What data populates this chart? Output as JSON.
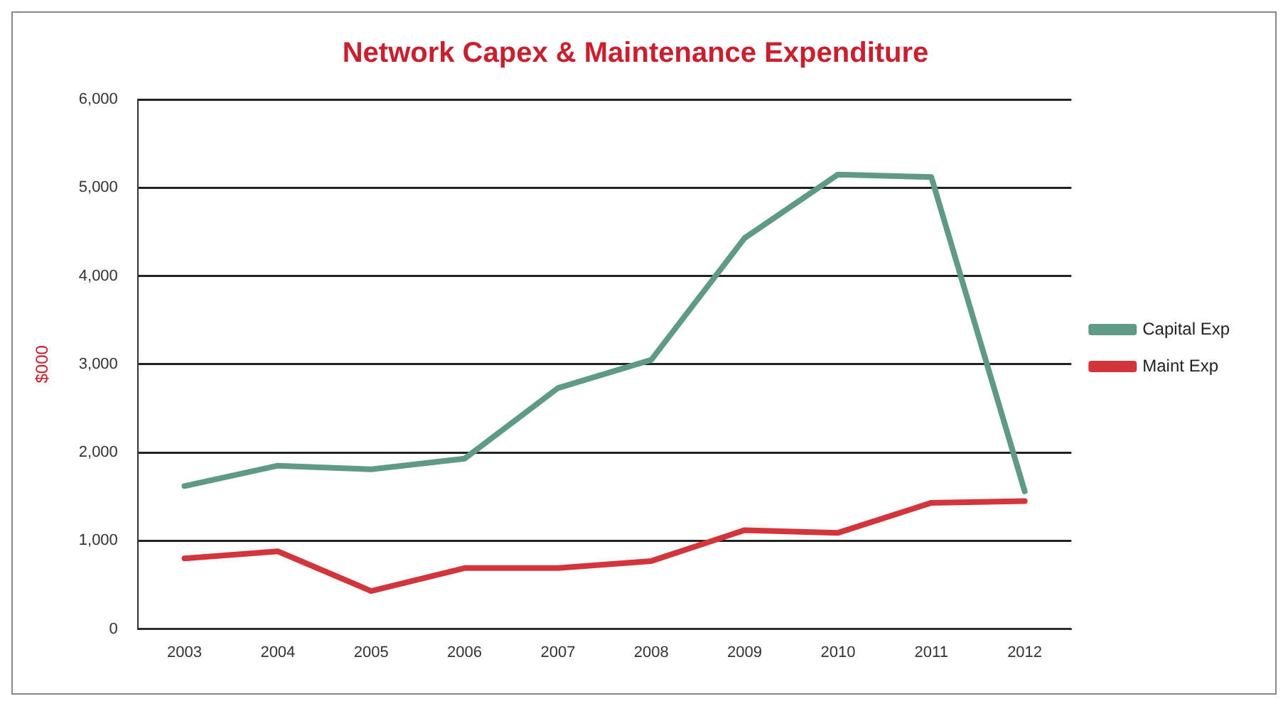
{
  "chart_data": {
    "type": "line",
    "title": "Network Capex & Maintenance Expenditure",
    "ylabel": "$000",
    "categories": [
      "2003",
      "2004",
      "2005",
      "2006",
      "2007",
      "2008",
      "2009",
      "2010",
      "2011",
      "2012"
    ],
    "series": [
      {
        "name": "Capital Exp",
        "color": "#5e9a85",
        "values": [
          1620,
          1850,
          1810,
          1930,
          2730,
          3050,
          4430,
          5150,
          5120,
          1560
        ]
      },
      {
        "name": "Maint Exp",
        "color": "#d2363c",
        "values": [
          800,
          880,
          430,
          690,
          690,
          770,
          1120,
          1090,
          1430,
          1450
        ]
      }
    ],
    "ylim": [
      0,
      6000
    ],
    "yticks": [
      {
        "value": 0,
        "label": "0"
      },
      {
        "value": 1000,
        "label": "1,000"
      },
      {
        "value": 2000,
        "label": "2,000"
      },
      {
        "value": 3000,
        "label": "3,000"
      },
      {
        "value": 4000,
        "label": "4,000"
      },
      {
        "value": 5000,
        "label": "5,000"
      },
      {
        "value": 6000,
        "label": "6,000"
      }
    ],
    "grid": "y",
    "legend": "right",
    "marker": "none",
    "line_style": "solid"
  }
}
